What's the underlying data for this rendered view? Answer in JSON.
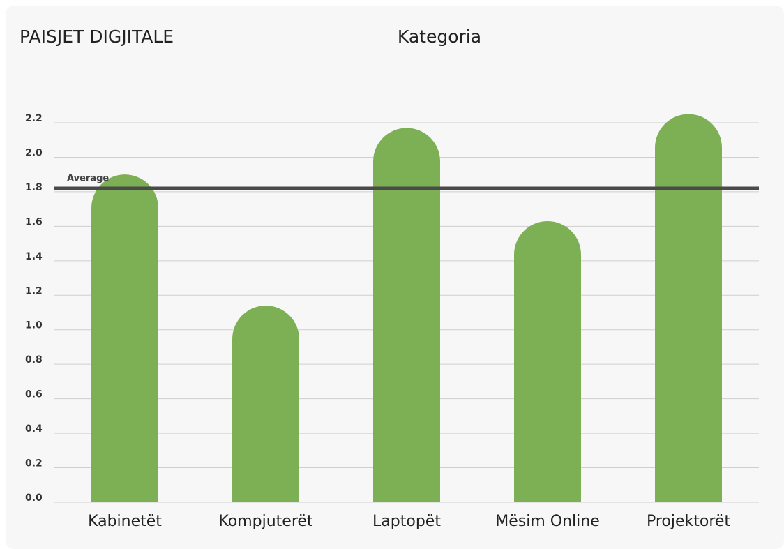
{
  "chart_data": {
    "type": "bar",
    "title": "PAISJET DIGJITALE",
    "x_label": "Kategoria",
    "categories": [
      "Kabinetët",
      "Kompjuterët",
      "Laptopët",
      "Mësim Online",
      "Projektorët"
    ],
    "values": [
      1.9,
      1.14,
      2.17,
      1.63,
      2.25
    ],
    "color": "#7db054",
    "ylim": [
      0,
      2.2
    ],
    "yticks": [
      {
        "value": 0,
        "label": "0.0"
      },
      0.2,
      0.4,
      0.6,
      0.8,
      {
        "value": 1,
        "label": "1.0"
      },
      1.2,
      1.4,
      1.6,
      1.8,
      {
        "value": 2,
        "label": "2.0"
      },
      2.2
    ],
    "grid": true,
    "average": {
      "label": "Average",
      "value": 1.82,
      "color": "#4a4a4a"
    }
  }
}
